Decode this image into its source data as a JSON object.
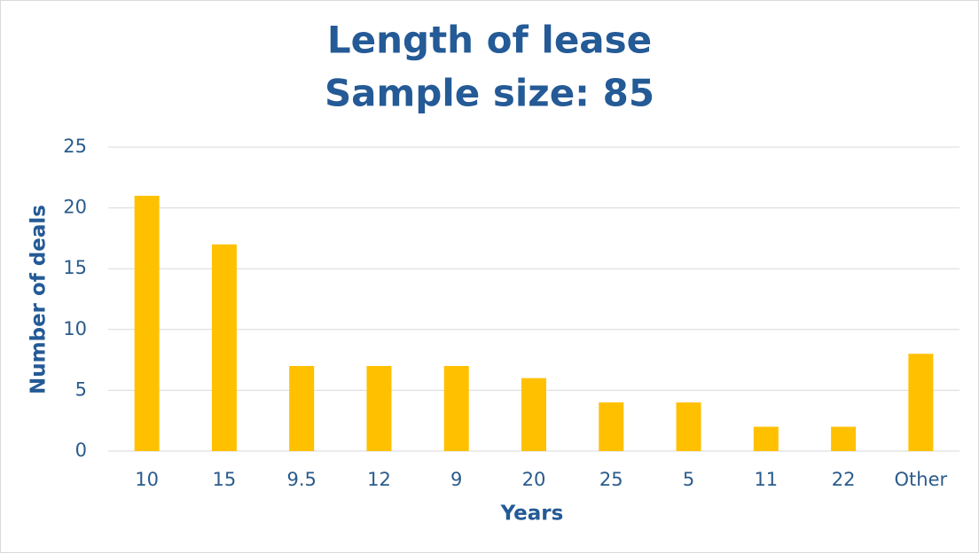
{
  "chart_data": {
    "type": "bar",
    "title": [
      "Length of lease",
      "Sample size: 85"
    ],
    "x_label": "Years",
    "y_label": "Number of deals",
    "categories": [
      "10",
      "15",
      "9.5",
      "12",
      "9",
      "20",
      "25",
      "5",
      "11",
      "22",
      "Other"
    ],
    "values": [
      21,
      17,
      7,
      7,
      7,
      6,
      4,
      4,
      2,
      2,
      8
    ],
    "color": "#ffc000",
    "ylim": [
      0,
      25
    ],
    "yticks": [
      0,
      5,
      10,
      15,
      20,
      25
    ],
    "grid": true
  }
}
